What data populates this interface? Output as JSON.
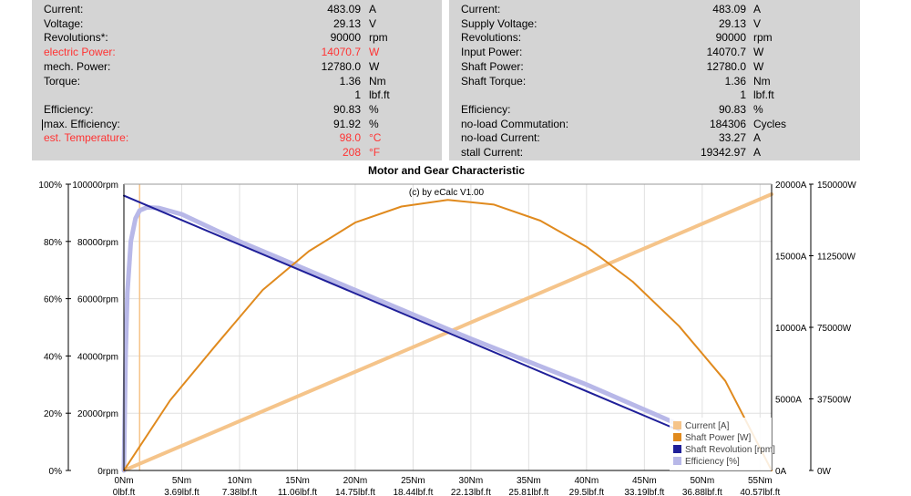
{
  "left_panel": [
    {
      "label": "Current:",
      "value": "483.09",
      "unit": "A",
      "red": false
    },
    {
      "label": "Voltage:",
      "value": "29.13",
      "unit": "V",
      "red": false
    },
    {
      "label": "Revolutions*:",
      "value": "90000",
      "unit": "rpm",
      "red": false
    },
    {
      "label": "electric Power:",
      "value": "14070.7",
      "unit": "W",
      "red": true
    },
    {
      "label": "mech. Power:",
      "value": "12780.0",
      "unit": "W",
      "red": false
    },
    {
      "label": "Torque:",
      "value": "1.36",
      "unit": "Nm",
      "red": false
    },
    {
      "label": "",
      "value": "1",
      "unit": "lbf.ft",
      "red": false
    },
    {
      "label": "Efficiency:",
      "value": "90.83",
      "unit": "%",
      "red": false
    },
    {
      "label": "max. Efficiency:",
      "value": "91.92",
      "unit": "%",
      "red": false
    },
    {
      "label": "est. Temperature:",
      "value": "98.0",
      "unit": "°C",
      "red": true
    },
    {
      "label": "",
      "value": "208",
      "unit": "°F",
      "red": true
    }
  ],
  "right_panel": [
    {
      "label": "Current:",
      "value": "483.09",
      "unit": "A"
    },
    {
      "label": "Supply Voltage:",
      "value": "29.13",
      "unit": "V"
    },
    {
      "label": "Revolutions:",
      "value": "90000",
      "unit": "rpm"
    },
    {
      "label": "Input Power:",
      "value": "14070.7",
      "unit": "W"
    },
    {
      "label": "Shaft Power:",
      "value": "12780.0",
      "unit": "W"
    },
    {
      "label": "Shaft Torque:",
      "value": "1.36",
      "unit": "Nm"
    },
    {
      "label": "",
      "value": "1",
      "unit": "lbf.ft"
    },
    {
      "label": "Efficiency:",
      "value": "90.83",
      "unit": "%"
    },
    {
      "label": "no-load Commutation:",
      "value": "184306",
      "unit": "Cycles"
    },
    {
      "label": "no-load Current:",
      "value": "33.27",
      "unit": "A"
    },
    {
      "label": "stall Current:",
      "value": "19342.97",
      "unit": "A"
    }
  ],
  "chart_data": {
    "type": "line",
    "title": "Motor and Gear Characteristic",
    "credit": "(c) by eCalc  V1.00",
    "x_range": [
      0,
      56
    ],
    "x_ticks": [
      0,
      5,
      10,
      15,
      20,
      25,
      30,
      35,
      40,
      45,
      50,
      55
    ],
    "x_tick_labels": [
      "0Nm",
      "5Nm",
      "10Nm",
      "15Nm",
      "20Nm",
      "25Nm",
      "30Nm",
      "35Nm",
      "40Nm",
      "45Nm",
      "50Nm",
      "55Nm"
    ],
    "x_tick_labels2": [
      "0lbf.ft",
      "3.69lbf.ft",
      "7.38lbf.ft",
      "11.06lbf.ft",
      "14.75lbf.ft",
      "18.44lbf.ft",
      "22.13lbf.ft",
      "25.81lbf.ft",
      "29.5lbf.ft",
      "33.19lbf.ft",
      "36.88lbf.ft",
      "40.57lbf.ft"
    ],
    "y_axes": {
      "percent": {
        "range": [
          0,
          100
        ],
        "ticks": [
          0,
          20,
          40,
          60,
          80,
          100
        ],
        "labels": [
          "0%",
          "20%",
          "40%",
          "60%",
          "80%",
          "100%"
        ]
      },
      "rpm": {
        "range": [
          0,
          100000
        ],
        "ticks": [
          0,
          20000,
          40000,
          60000,
          80000,
          100000
        ],
        "labels": [
          "0rpm",
          "20000rpm",
          "40000rpm",
          "60000rpm",
          "80000rpm",
          "100000rpm"
        ]
      },
      "current": {
        "range": [
          0,
          20000
        ],
        "ticks": [
          0,
          5000,
          10000,
          15000,
          20000
        ],
        "labels": [
          "0A",
          "5000A",
          "10000A",
          "15000A",
          "20000A"
        ]
      },
      "power": {
        "range": [
          0,
          150000
        ],
        "ticks": [
          0,
          37500,
          75000,
          112500,
          150000
        ],
        "labels": [
          "0W",
          "37500W",
          "75000W",
          "112500W",
          "150000W"
        ]
      }
    },
    "grid": true,
    "legend_position": "bottom-right",
    "operating_point_torque": 1.36,
    "series": [
      {
        "name": "Current [A]",
        "axis": "current",
        "color": "#f5c48a",
        "x": [
          0,
          56
        ],
        "y": [
          0,
          19300
        ]
      },
      {
        "name": "Shaft Power [W]",
        "axis": "power",
        "color": "#e08a1e",
        "x": [
          0,
          4,
          8,
          12,
          16,
          20,
          24,
          28,
          32,
          36,
          40,
          44,
          48,
          52,
          56
        ],
        "y": [
          0,
          36800,
          66000,
          94600,
          114900,
          129900,
          138300,
          141800,
          139300,
          130900,
          117200,
          98900,
          75600,
          46900,
          0
        ]
      },
      {
        "name": "Shaft Revolution [rpm]",
        "axis": "rpm",
        "color": "#1f1f99",
        "x": [
          0,
          48
        ],
        "y": [
          96000,
          14000
        ]
      },
      {
        "name": "Efficiency [%]",
        "axis": "percent",
        "color": "#b8b8e8",
        "x": [
          0,
          0.15,
          0.3,
          0.6,
          1.0,
          1.36,
          2,
          3,
          5,
          10,
          20,
          30,
          40,
          48
        ],
        "y": [
          0,
          40,
          62,
          80,
          88,
          90.83,
          91.9,
          91.7,
          89.5,
          80,
          63,
          46,
          30,
          16
        ]
      }
    ]
  }
}
